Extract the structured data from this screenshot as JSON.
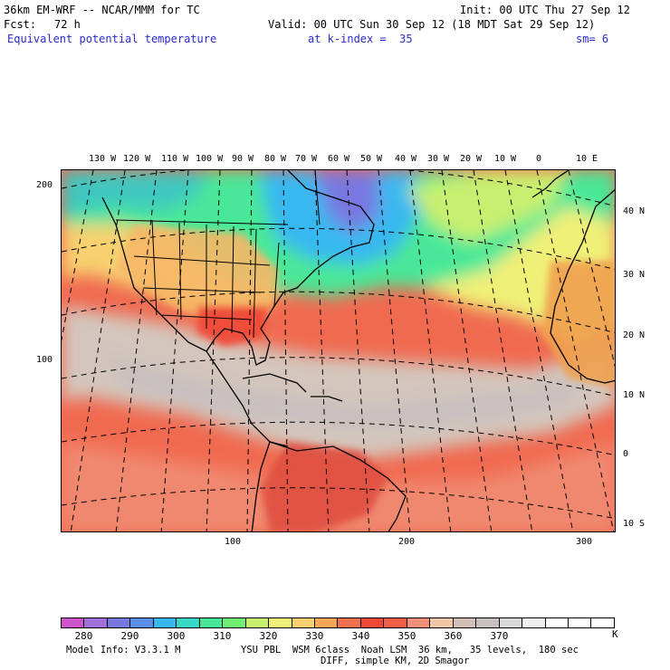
{
  "header": {
    "model": "36km EM-WRF -- NCAR/MMM for TC",
    "init": "Init: 00 UTC Thu 27 Sep 12",
    "fcst_label": "Fcst:",
    "fcst_value": "72 h",
    "valid": "Valid: 00 UTC Sun 30 Sep 12 (18 MDT Sat 29 Sep 12)",
    "field": "Equivalent potential temperature",
    "level": "at k-index =  35",
    "smooth": "sm= 6"
  },
  "map": {
    "lon_labels": [
      "130 W",
      "120 W",
      "110 W",
      "100 W",
      "90 W",
      "80 W",
      "70 W",
      "60 W",
      "50 W",
      "40 W",
      "30 W",
      "20 W",
      "10 W",
      "0",
      "10 E"
    ],
    "lat_labels": [
      "40 N",
      "30 N",
      "20 N",
      "10 N",
      "0",
      "10 S"
    ],
    "grid_y_labels": [
      "200",
      "100"
    ],
    "grid_x_labels": [
      "100",
      "200",
      "300"
    ]
  },
  "colorbar": {
    "colors": [
      "#cc55cc",
      "#a070d8",
      "#7878e0",
      "#5a8ee8",
      "#38b8f0",
      "#38d8c8",
      "#48e898",
      "#70f070",
      "#c8f070",
      "#f0f078",
      "#f8d070",
      "#f8a858",
      "#f07050",
      "#f04838",
      "#f06048",
      "#f09078",
      "#f0c8a8",
      "#d0c0b8",
      "#c8c0c0",
      "#d8d8d8",
      "#f0f0f0",
      "#ffffff",
      "#ffffff",
      "#ffffff"
    ],
    "labels": [
      "280",
      "290",
      "300",
      "310",
      "320",
      "330",
      "340",
      "350",
      "360",
      "370"
    ],
    "unit": "K"
  },
  "footer": {
    "model_info": "Model Info: V3.3.1 M",
    "physics": "YSU PBL  WSM 6class  Noah LSM  36 km,   35 levels,  180 sec",
    "diff": "DIFF, simple KM, 2D Smagor"
  }
}
